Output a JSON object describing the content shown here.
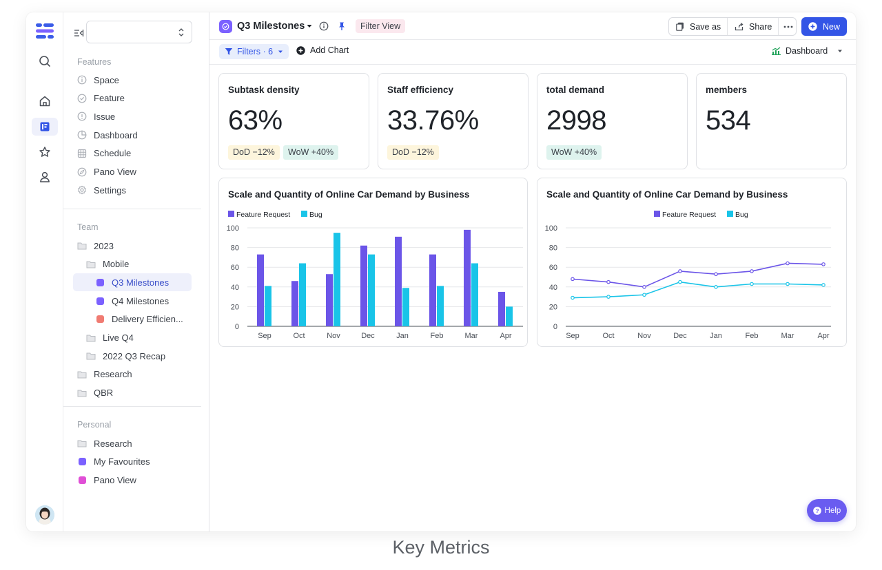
{
  "rail": {
    "icons": [
      "search-icon",
      "home-icon",
      "board-icon",
      "star-icon",
      "user-icon"
    ]
  },
  "sidebar": {
    "features_title": "Features",
    "features": [
      {
        "label": "Space",
        "icon": "info-circle-icon"
      },
      {
        "label": "Feature",
        "icon": "check-circle-icon"
      },
      {
        "label": "Issue",
        "icon": "alert-circle-icon"
      },
      {
        "label": "Dashboard",
        "icon": "pie-icon"
      },
      {
        "label": "Schedule",
        "icon": "grid-icon"
      },
      {
        "label": "Pano View",
        "icon": "compass-icon"
      },
      {
        "label": "Settings",
        "icon": "gear-icon"
      }
    ],
    "team_title": "Team",
    "team": [
      {
        "label": "2023",
        "kind": "folder",
        "indent": 0
      },
      {
        "label": "Mobile",
        "kind": "folder",
        "indent": 1
      },
      {
        "label": "Q3 Milestones",
        "kind": "square",
        "color": "#7b61ff",
        "indent": 2,
        "active": true
      },
      {
        "label": "Q4 Milestones",
        "kind": "square",
        "color": "#7b61ff",
        "indent": 2
      },
      {
        "label": "Delivery Efficien...",
        "kind": "square",
        "color": "#f07b72",
        "indent": 2
      },
      {
        "label": "Live Q4",
        "kind": "folder",
        "indent": 1
      },
      {
        "label": "2022 Q3 Recap",
        "kind": "folder",
        "indent": 1
      },
      {
        "label": "Research",
        "kind": "folder",
        "indent": 0
      },
      {
        "label": "QBR",
        "kind": "folder",
        "indent": 0
      }
    ],
    "personal_title": "Personal",
    "personal": [
      {
        "label": "Research",
        "kind": "folder"
      },
      {
        "label": "My Favourites",
        "kind": "square",
        "color": "#7b61ff"
      },
      {
        "label": "Pano View",
        "kind": "square",
        "color": "#e04fd6"
      }
    ]
  },
  "header": {
    "title": "Q3 Milestones",
    "filter_view": "Filter View",
    "save_as": "Save as",
    "share": "Share",
    "new": "New"
  },
  "toolbar": {
    "filters": "Filters · 6",
    "add_chart": "Add Chart",
    "dashboard": "Dashboard"
  },
  "metrics": [
    {
      "title": "Subtask density",
      "value": "63%",
      "tags": [
        {
          "text": "DoD −12%",
          "tone": "y"
        },
        {
          "text": "WoW +40%",
          "tone": "g"
        }
      ]
    },
    {
      "title": "Staff efficiency",
      "value": "33.76%",
      "tags": [
        {
          "text": "DoD −12%",
          "tone": "y"
        }
      ]
    },
    {
      "title": "total demand",
      "value": "2998",
      "tags": [
        {
          "text": "WoW +40%",
          "tone": "g"
        }
      ]
    },
    {
      "title": "members",
      "value": "534",
      "tags": []
    }
  ],
  "colors": {
    "feature": "#6b55e8",
    "bug": "#19c4e8",
    "accent": "#3355e6"
  },
  "chart_data": [
    {
      "type": "bar",
      "title": "Scale and Quantity of Online Car Demand by Business",
      "categories": [
        "Sep",
        "Oct",
        "Nov",
        "Dec",
        "Jan",
        "Feb",
        "Mar",
        "Apr"
      ],
      "series": [
        {
          "name": "Feature Request",
          "values": [
            73,
            46,
            53,
            82,
            91,
            73,
            98,
            35
          ]
        },
        {
          "name": "Bug",
          "values": [
            41,
            64,
            95,
            73,
            39,
            41,
            64,
            20
          ]
        }
      ],
      "ylim": [
        0,
        100
      ],
      "yticks": [
        "0",
        "20",
        "40",
        "60",
        "80",
        "100"
      ],
      "legend": "top-left"
    },
    {
      "type": "line",
      "title": "Scale and Quantity of Online Car Demand by Business",
      "categories": [
        "Sep",
        "Oct",
        "Nov",
        "Dec",
        "Jan",
        "Feb",
        "Mar",
        "Apr"
      ],
      "series": [
        {
          "name": "Feature Request",
          "values": [
            48,
            45,
            40,
            56,
            53,
            56,
            64,
            63
          ]
        },
        {
          "name": "Bug",
          "values": [
            29,
            30,
            32,
            45,
            40,
            43,
            43,
            42
          ]
        }
      ],
      "ylim": [
        0,
        100
      ],
      "yticks": [
        "0",
        "20",
        "40",
        "60",
        "80",
        "100"
      ],
      "legend": "top-center"
    }
  ],
  "help": "Help",
  "caption": "Key Metrics"
}
